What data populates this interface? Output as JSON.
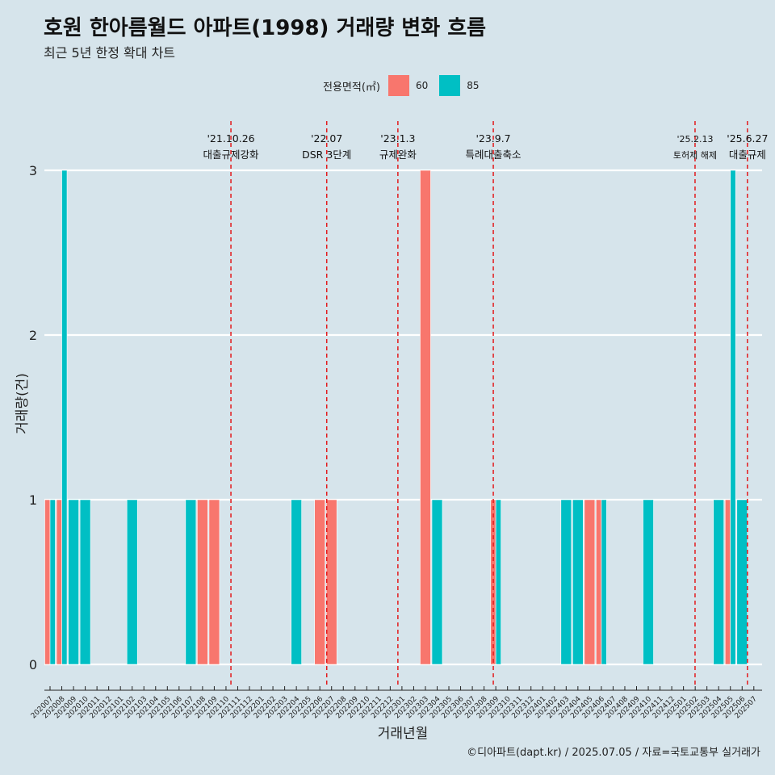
{
  "title": "호원 한아름월드 아파트(1998) 거래량 변화 흐름",
  "subtitle": "최근 5년 한정 확대 차트",
  "caption": "©디아파트(dapt.kr) / 2025.07.05 / 자료=국토교통부 실거래가",
  "legend": {
    "title": "전용면적(㎡)",
    "items": [
      {
        "label": "60",
        "color": "#f8766d"
      },
      {
        "label": "85",
        "color": "#00bfc4"
      }
    ]
  },
  "colors": {
    "background": "#d6e4eb",
    "grid": "#ffffff",
    "event_line": "#e31a1c",
    "series_60": "#f8766d",
    "series_85": "#00bfc4"
  },
  "chart_data": {
    "type": "bar",
    "xlabel": "거래년월",
    "ylabel": "거래량(건)",
    "ylim": [
      0,
      3
    ],
    "yticks": [
      0,
      1,
      2,
      3
    ],
    "grid": true,
    "legend_position": "top",
    "categories": [
      "202007",
      "202008",
      "202009",
      "202010",
      "202011",
      "202012",
      "202101",
      "202102",
      "202103",
      "202104",
      "202105",
      "202106",
      "202107",
      "202108",
      "202109",
      "202110",
      "202111",
      "202112",
      "202201",
      "202202",
      "202203",
      "202204",
      "202205",
      "202206",
      "202207",
      "202208",
      "202209",
      "202210",
      "202211",
      "202212",
      "202301",
      "202302",
      "202303",
      "202304",
      "202305",
      "202306",
      "202307",
      "202308",
      "202309",
      "202310",
      "202311",
      "202312",
      "202401",
      "202402",
      "202403",
      "202404",
      "202405",
      "202406",
      "202407",
      "202408",
      "202409",
      "202410",
      "202411",
      "202412",
      "202501",
      "202502",
      "202503",
      "202504",
      "202505",
      "202506",
      "202507"
    ],
    "series": [
      {
        "name": "60",
        "values": [
          1,
          1,
          0,
          0,
          0,
          0,
          0,
          0,
          0,
          0,
          0,
          0,
          0,
          1,
          1,
          0,
          0,
          0,
          0,
          0,
          0,
          0,
          0,
          1,
          1,
          0,
          0,
          0,
          0,
          0,
          0,
          0,
          3,
          0,
          0,
          0,
          0,
          0,
          1,
          0,
          0,
          0,
          0,
          0,
          0,
          0,
          1,
          1,
          0,
          0,
          0,
          0,
          0,
          0,
          0,
          0,
          0,
          0,
          1,
          0,
          0
        ]
      },
      {
        "name": "85",
        "values": [
          1,
          3,
          1,
          1,
          0,
          0,
          0,
          1,
          0,
          0,
          0,
          0,
          1,
          0,
          0,
          0,
          0,
          0,
          0,
          0,
          0,
          1,
          0,
          0,
          0,
          0,
          0,
          0,
          0,
          0,
          0,
          0,
          0,
          1,
          0,
          0,
          0,
          0,
          1,
          0,
          0,
          0,
          0,
          0,
          1,
          1,
          0,
          1,
          0,
          0,
          0,
          1,
          0,
          0,
          0,
          0,
          0,
          1,
          3,
          1,
          0
        ]
      }
    ],
    "events": [
      {
        "date": "2021-10-26",
        "label_top": "'21.10.26",
        "label_bottom": "대출규제강화"
      },
      {
        "date": "2022-07-01",
        "label_top": "'22.07",
        "label_bottom": "DSR 3단계"
      },
      {
        "date": "2023-01-03",
        "label_top": "'23.1.3",
        "label_bottom": "규제완화"
      },
      {
        "date": "2023-09-07",
        "label_top": "'23.9.7",
        "label_bottom": "특례대출축소"
      },
      {
        "date": "2025-02-13",
        "label_top": "'25.2.13",
        "label_bottom": "토허제 해제"
      },
      {
        "date": "2025-06-27",
        "label_top": "'25.6.27",
        "label_bottom": "대출규제"
      }
    ]
  }
}
